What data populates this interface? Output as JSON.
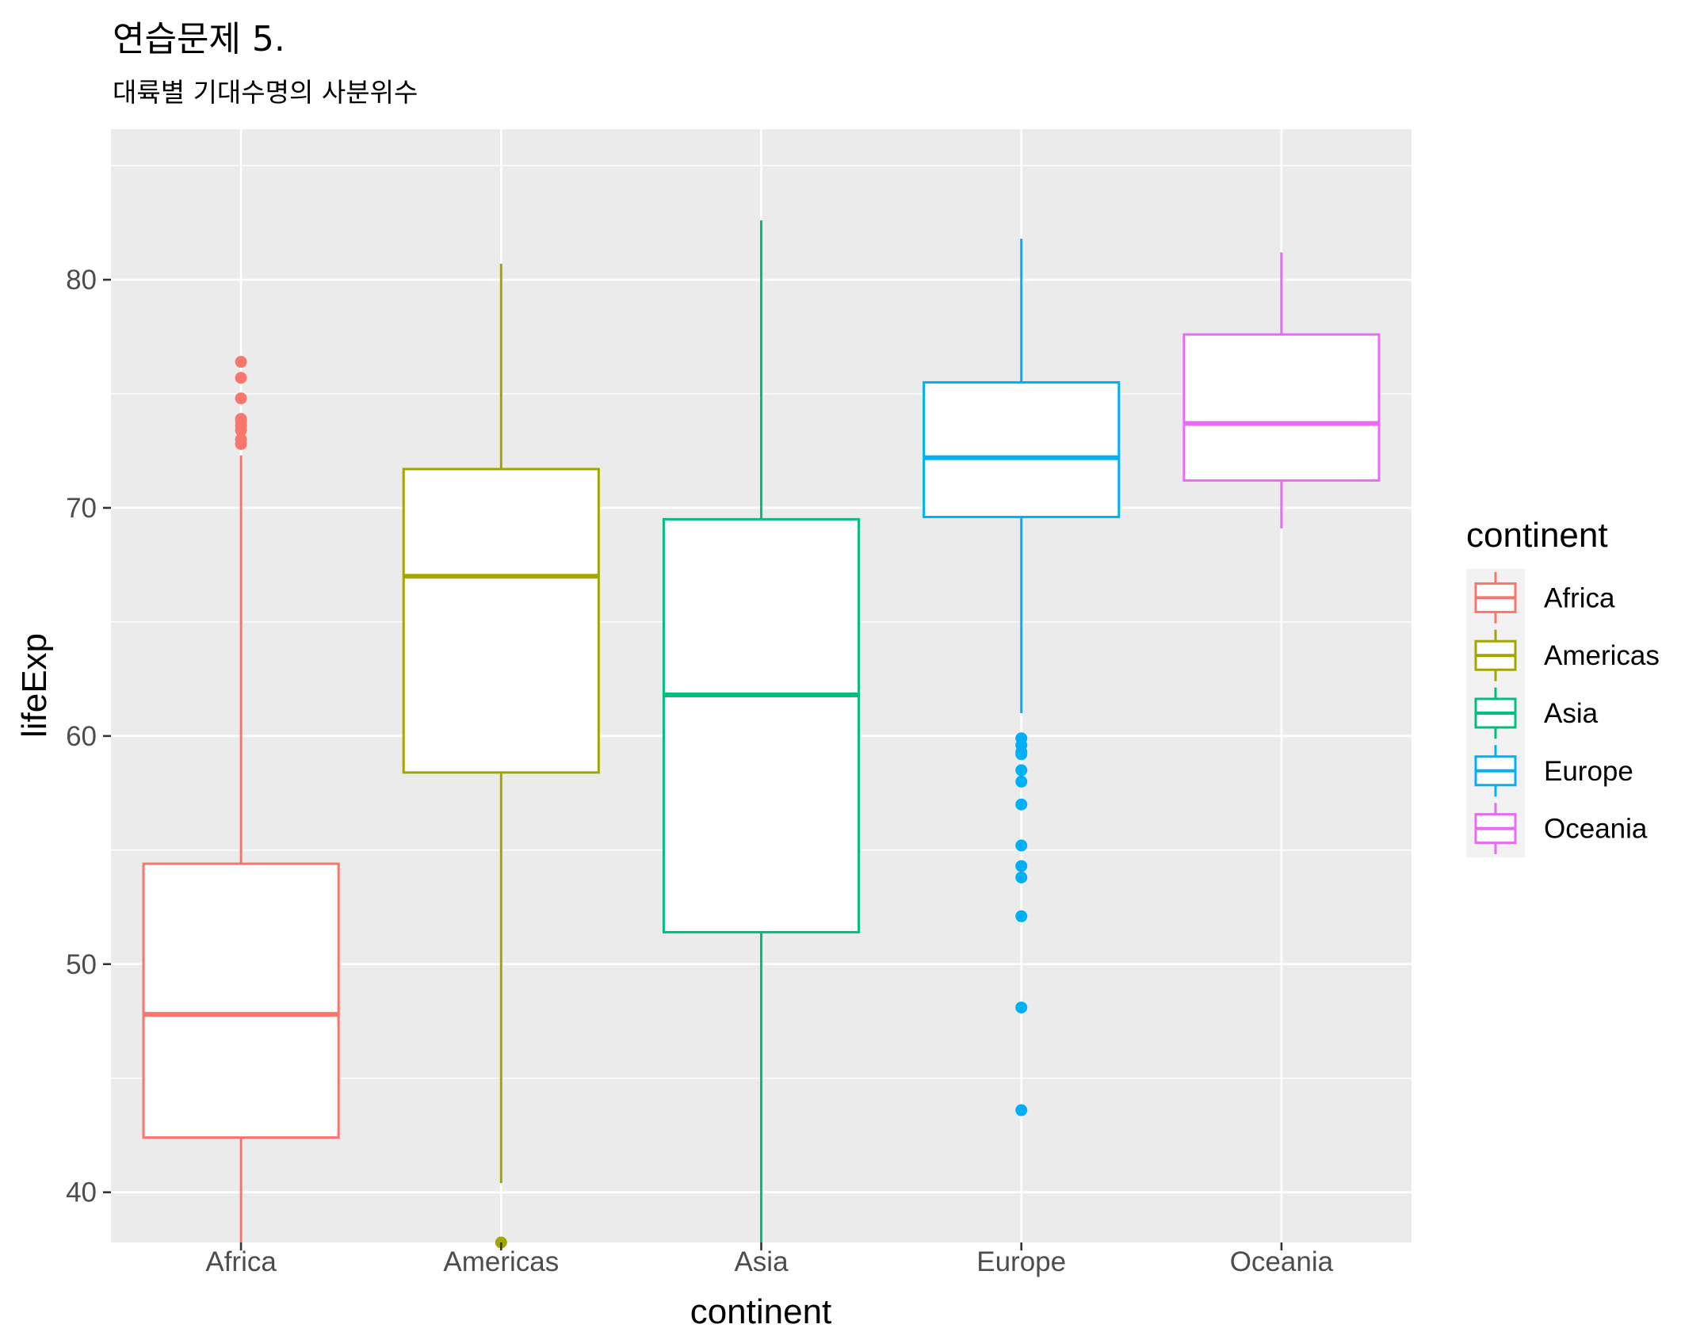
{
  "chart_data": {
    "type": "box",
    "title": "연습문제 5.",
    "subtitle": "대륙별 기대수명의 사분위수",
    "xlabel": "continent",
    "ylabel": "lifeExp",
    "ylim": [
      37.8,
      86.6
    ],
    "yticks": [
      40,
      50,
      60,
      70,
      80
    ],
    "grid": true,
    "legend": {
      "title": "continent",
      "position": "right"
    },
    "categories": [
      "Africa",
      "Americas",
      "Asia",
      "Europe",
      "Oceania"
    ],
    "series": [
      {
        "name": "Africa",
        "color": "#F8766D",
        "whisker_low": 37.8,
        "q1": 42.4,
        "median": 47.8,
        "q3": 54.4,
        "whisker_high": 72.3,
        "outliers": [
          72.8,
          73.0,
          73.4,
          73.6,
          73.8,
          73.9,
          74.8,
          75.7,
          76.4
        ]
      },
      {
        "name": "Americas",
        "color": "#A3A500",
        "whisker_low": 40.4,
        "q1": 58.4,
        "median": 67.0,
        "q3": 71.7,
        "whisker_high": 80.7,
        "outliers": [
          37.6
        ]
      },
      {
        "name": "Asia",
        "color": "#00BF7D",
        "whisker_low": 37.8,
        "q1": 51.4,
        "median": 61.8,
        "q3": 69.5,
        "whisker_high": 82.6,
        "outliers": []
      },
      {
        "name": "Europe",
        "color": "#00B0F6",
        "whisker_low": 61.0,
        "q1": 69.6,
        "median": 72.2,
        "q3": 75.5,
        "whisker_high": 81.8,
        "outliers": [
          59.9,
          59.6,
          59.3,
          59.2,
          58.5,
          58.0,
          57.0,
          55.2,
          54.3,
          53.8,
          52.1,
          48.1,
          43.6
        ]
      },
      {
        "name": "Oceania",
        "color": "#E76BF3",
        "whisker_low": 69.1,
        "q1": 71.2,
        "median": 73.7,
        "q3": 77.6,
        "whisker_high": 81.2,
        "outliers": []
      }
    ]
  }
}
